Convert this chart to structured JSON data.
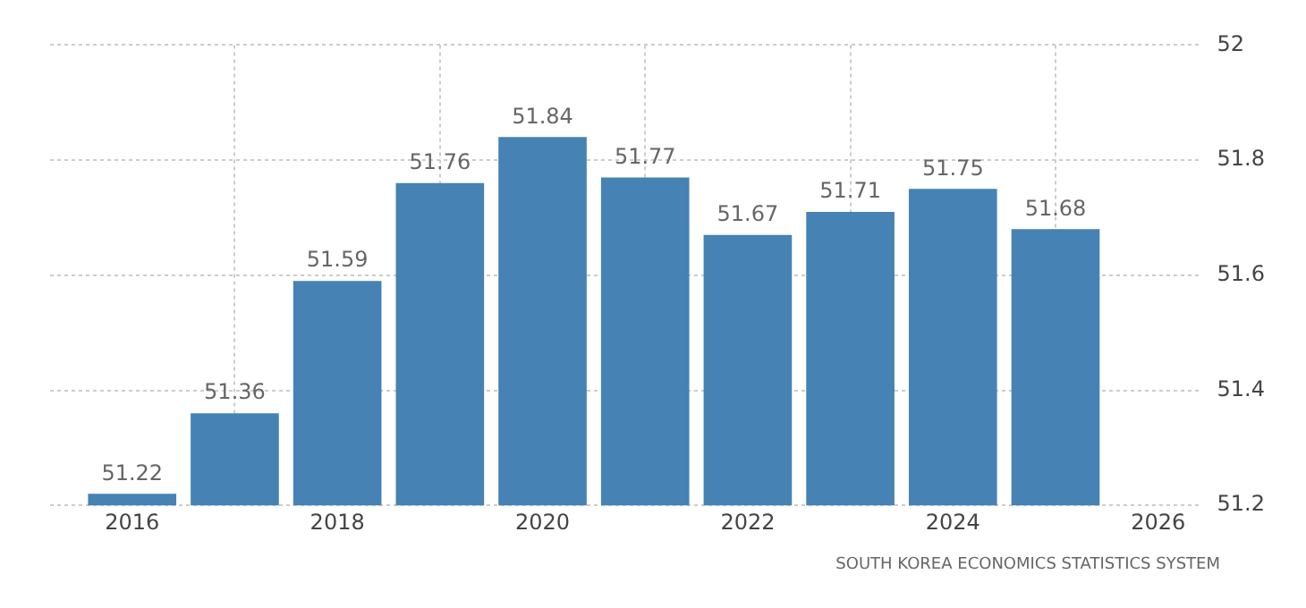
{
  "chart_data": {
    "type": "bar",
    "x": [
      2016,
      2017,
      2018,
      2019,
      2020,
      2021,
      2022,
      2023,
      2024,
      2025
    ],
    "values": [
      51.22,
      51.36,
      51.59,
      51.76,
      51.84,
      51.77,
      51.67,
      51.71,
      51.75,
      51.68
    ],
    "color": "#4682b4",
    "xlim": [
      2015.2,
      2026.4
    ],
    "xticks": [
      2016,
      2018,
      2020,
      2022,
      2024,
      2026
    ],
    "ylim": [
      51.2,
      52
    ],
    "yticks": [
      51.2,
      51.4,
      51.6,
      51.8,
      52
    ],
    "grid": true,
    "data_labels": true,
    "legend": false,
    "annotations": [
      "SOUTH KOREA ECONOMICS STATISTICS SYSTEM"
    ]
  }
}
